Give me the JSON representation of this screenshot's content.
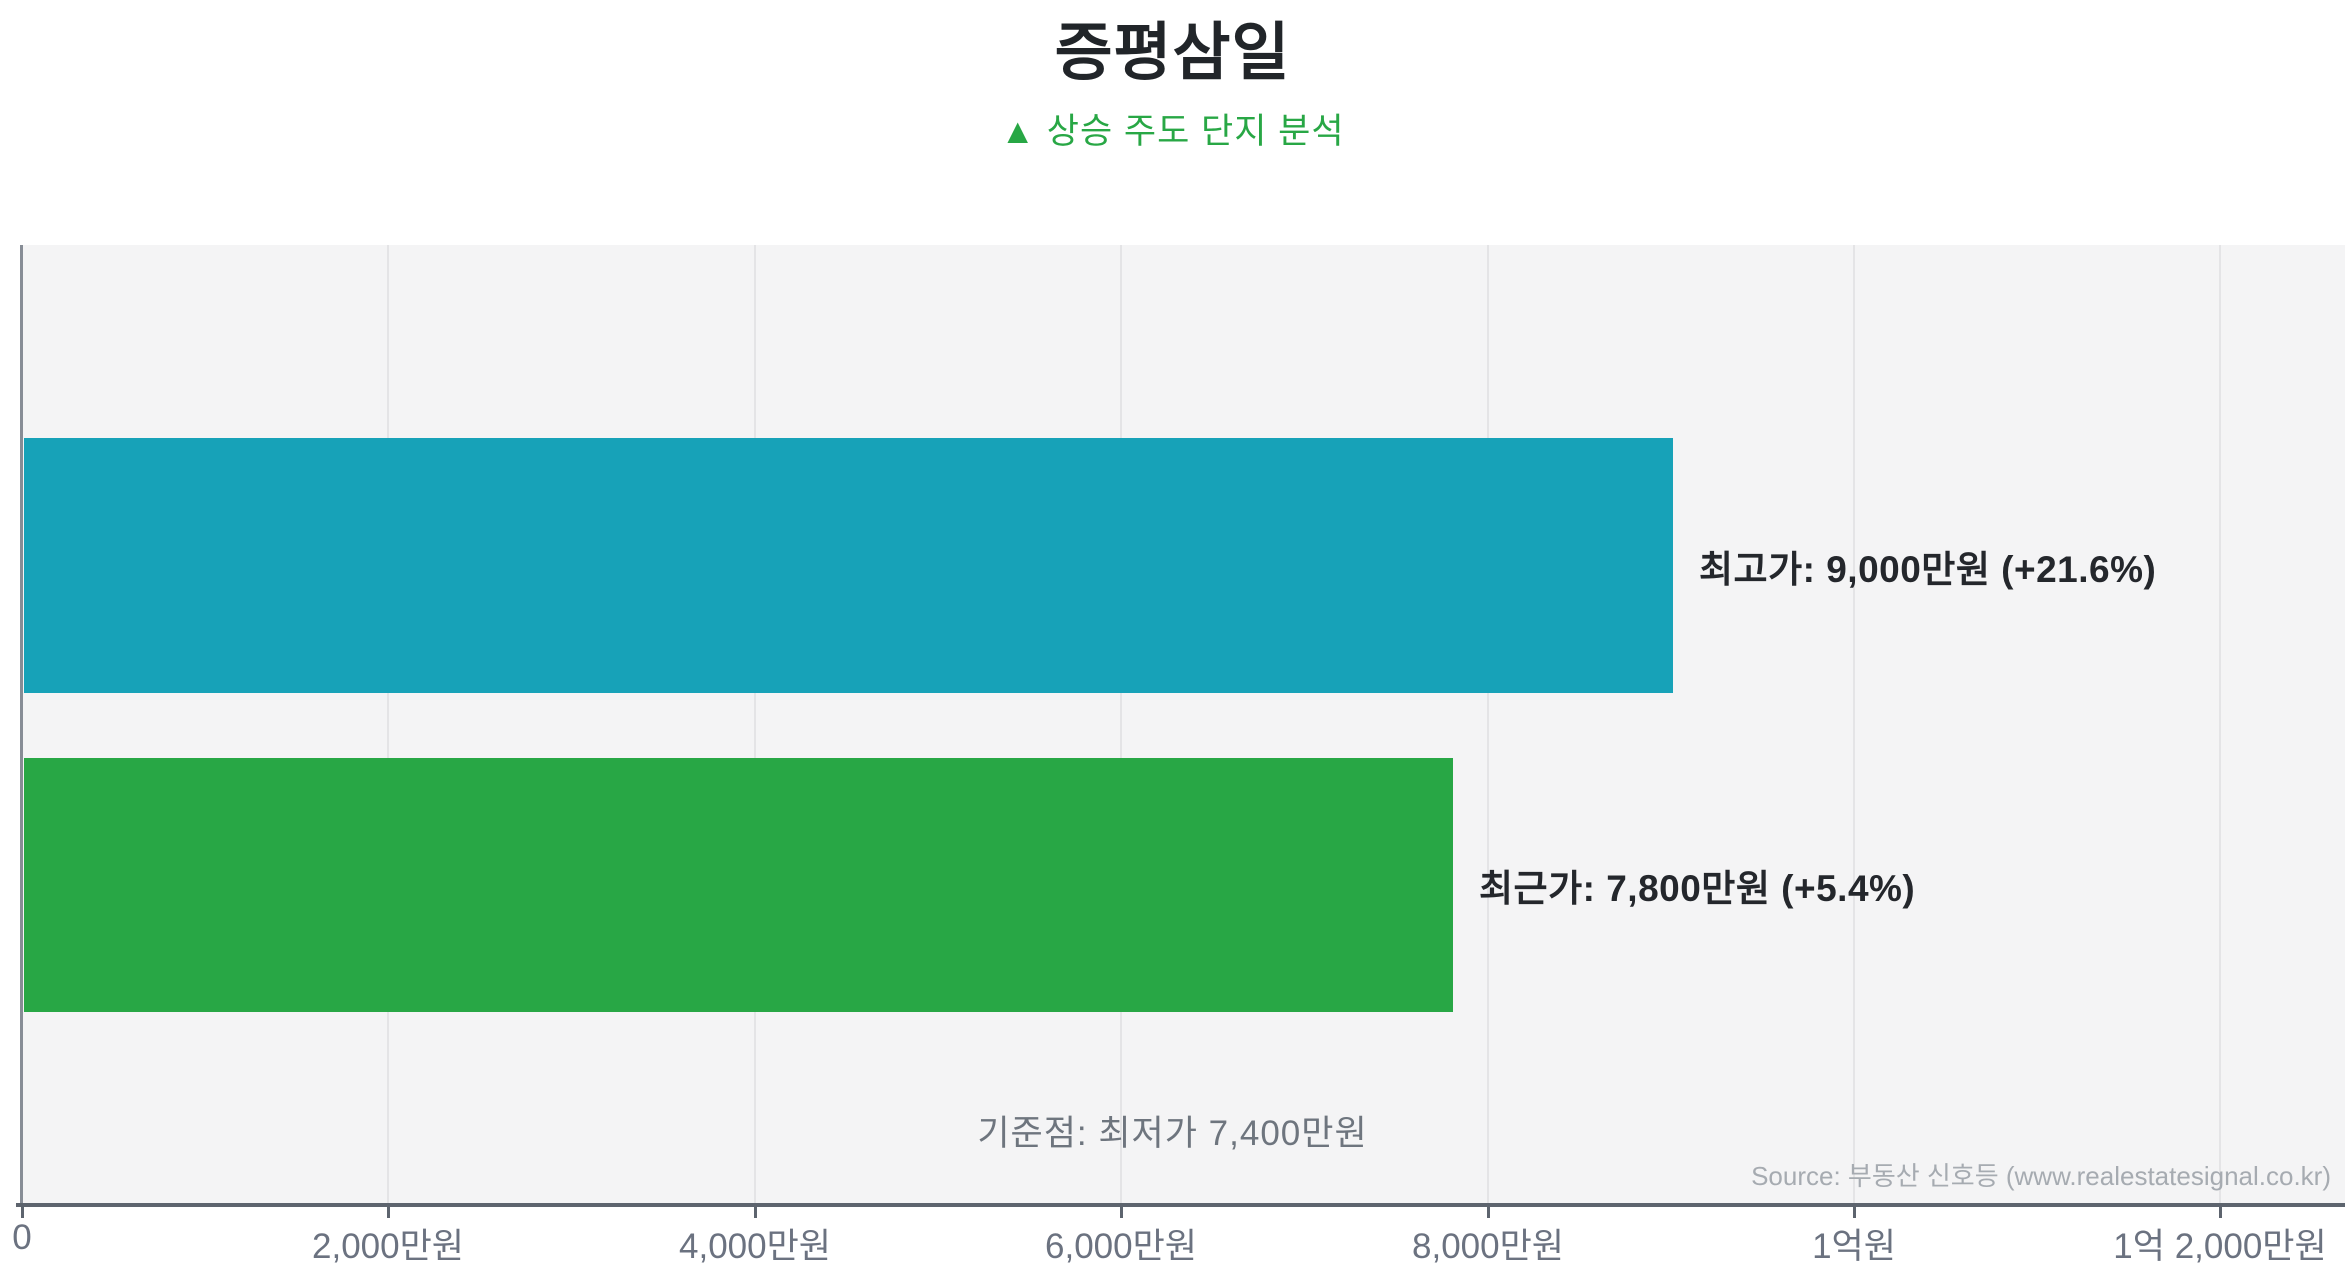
{
  "page": {
    "title": "증평삼일",
    "subtitle": "▲ 상승 주도 단지 분석",
    "source": "Source: 부동산 신호등 (www.realestatesignal.co.kr)"
  },
  "chart_data": {
    "type": "bar",
    "orientation": "horizontal",
    "title": "증평삼일",
    "subtitle": "상승 주도 단지 분석",
    "unit": "만원",
    "categories": [
      "최고가",
      "최근가"
    ],
    "series": [
      {
        "name": "최고가",
        "value": 9000,
        "change_pct": "+21.6%",
        "label": "최고가: 9,000만원 (+21.6%)",
        "color": "#17a2b8"
      },
      {
        "name": "최근가",
        "value": 7800,
        "change_pct": "+5.4%",
        "label": "최근가: 7,800만원 (+5.4%)",
        "color": "#28a745"
      }
    ],
    "baseline": {
      "label": "기준점: 최저가 7,400만원",
      "value": 7400
    },
    "x_axis": {
      "ticks": [
        {
          "value": 0,
          "label": "0"
        },
        {
          "value": 2000,
          "label": "2,000만원"
        },
        {
          "value": 4000,
          "label": "4,000만원"
        },
        {
          "value": 6000,
          "label": "6,000만원"
        },
        {
          "value": 8000,
          "label": "8,000만원"
        },
        {
          "value": 10000,
          "label": "1억원"
        },
        {
          "value": 12000,
          "label": "1억 2,000만원"
        }
      ],
      "range": [
        0,
        12700
      ],
      "grid": true
    },
    "legend": null
  },
  "colors": {
    "bar_high": "#17a2b8",
    "bar_recent": "#28a745",
    "accent_green": "#28a745",
    "plot_bg": "#f4f4f5",
    "grid": "#e4e4e6",
    "axis": "#5d646e",
    "tick_label": "#6b7280",
    "annotation": "#6e757e",
    "source_text": "#a6abb1",
    "title_text": "#212529"
  }
}
